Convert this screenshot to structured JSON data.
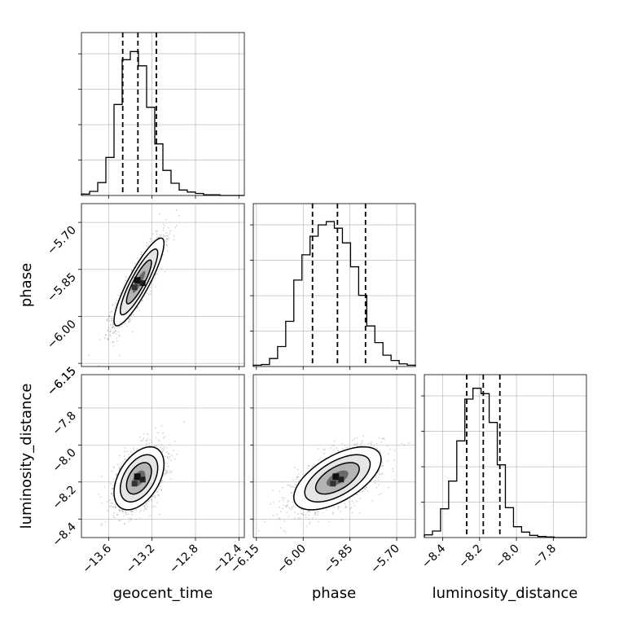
{
  "chart_data": {
    "type": "corner",
    "parameters": [
      {
        "name": "geocent_time",
        "label": "geocent_time",
        "range": [
          -13.85,
          -12.35
        ],
        "ticks": [
          -13.6,
          -13.2,
          -12.8,
          -12.4
        ],
        "tick_labels": [
          "−13.6",
          "−13.2",
          "−12.8",
          "−12.4"
        ],
        "quantiles": [
          -13.47,
          -13.33,
          -13.16
        ]
      },
      {
        "name": "phase",
        "label": "phase",
        "range": [
          -6.16,
          -5.64
        ],
        "ticks": [
          -6.15,
          -6.0,
          -5.85,
          -5.7
        ],
        "tick_labels": [
          "−6.15",
          "−6.00",
          "−5.85",
          "−5.70"
        ],
        "quantiles": [
          -5.97,
          -5.89,
          -5.8
        ]
      },
      {
        "name": "luminosity_distance",
        "label": "luminosity_distance",
        "range": [
          -8.5,
          -7.62
        ],
        "ticks": [
          -8.4,
          -8.2,
          -8.0,
          -7.8
        ],
        "tick_labels": [
          "−8.4",
          "−8.2",
          "−8.0",
          "−7.8"
        ],
        "quantiles": [
          -8.27,
          -8.18,
          -8.09
        ]
      }
    ],
    "histograms": [
      {
        "param": "geocent_time",
        "bin_edges_start": -13.85,
        "bin_width": 0.075,
        "counts": [
          2,
          6,
          19,
          56,
          134,
          200,
          212,
          191,
          130,
          76,
          37,
          18,
          8,
          5,
          3,
          1,
          1,
          0,
          0,
          0
        ],
        "ymax": 240
      },
      {
        "param": "phase",
        "bin_edges_start": -6.16,
        "bin_width": 0.026,
        "counts": [
          2,
          3,
          12,
          30,
          68,
          130,
          168,
          196,
          213,
          218,
          208,
          186,
          150,
          107,
          61,
          36,
          17,
          9,
          4,
          2
        ],
        "ymax": 245
      },
      {
        "param": "luminosity_distance",
        "bin_edges_start": -8.5,
        "bin_width": 0.044,
        "counts": [
          5,
          12,
          53,
          104,
          178,
          255,
          275,
          265,
          212,
          134,
          55,
          20,
          10,
          4,
          2,
          1,
          0,
          0,
          0,
          0
        ],
        "ymax": 300
      }
    ],
    "pairs": [
      {
        "x": "geocent_time",
        "y": "phase",
        "mean": [
          -13.32,
          -5.89
        ],
        "sd": [
          0.115,
          0.07
        ],
        "rho": 0.88
      },
      {
        "x": "geocent_time",
        "y": "luminosity_distance",
        "mean": [
          -13.32,
          -8.18
        ],
        "sd": [
          0.115,
          0.085
        ],
        "rho": 0.45
      },
      {
        "x": "phase",
        "y": "luminosity_distance",
        "mean": [
          -5.89,
          -8.18
        ],
        "sd": [
          0.07,
          0.085
        ],
        "rho": 0.6
      }
    ],
    "contour_levels_sigma": [
      0.5,
      1.0,
      1.5,
      2.0
    ],
    "grid": true
  }
}
